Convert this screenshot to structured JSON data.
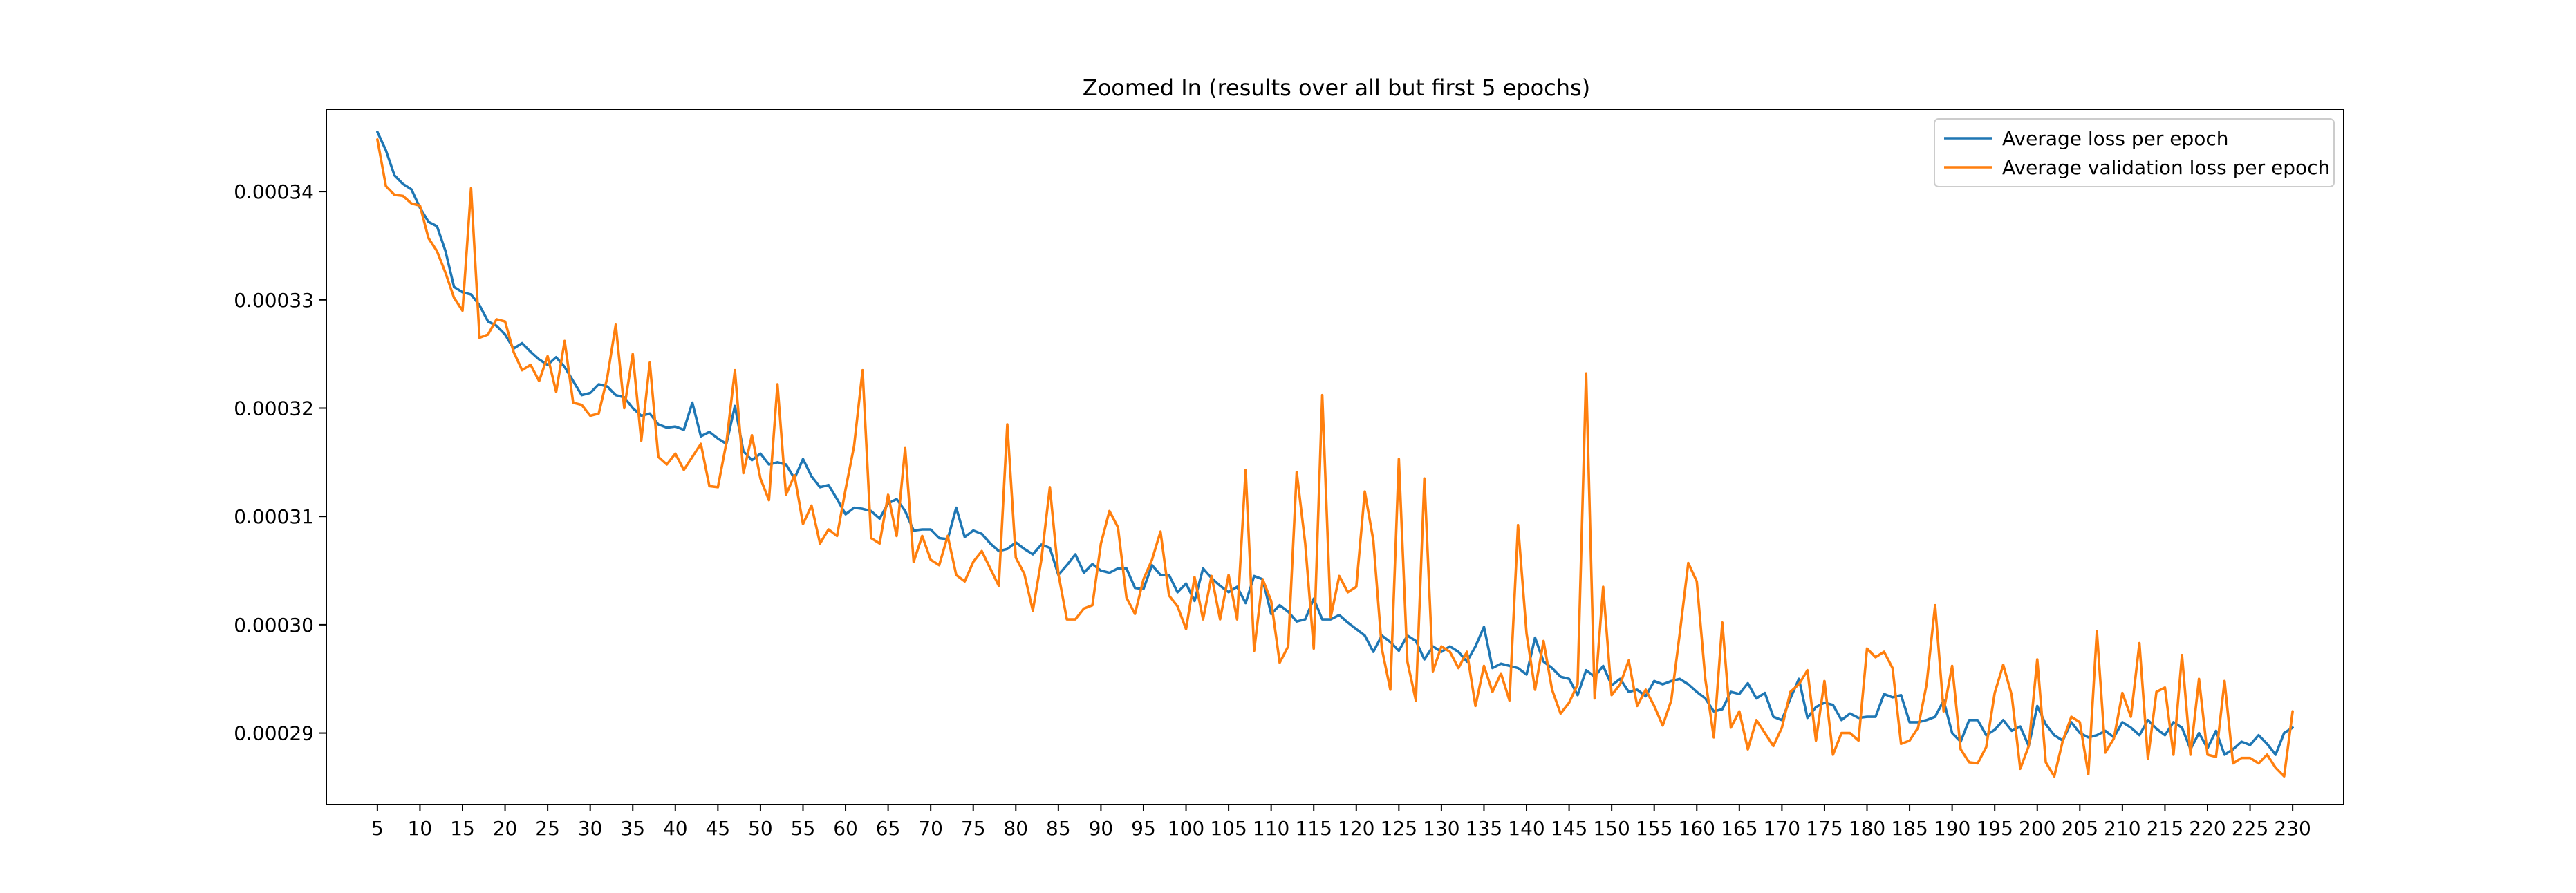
{
  "chart_data": {
    "type": "line",
    "title": "Zoomed In (results over all but first 5 epochs)",
    "xlabel": "",
    "ylabel": "",
    "xlim": [
      -1,
      236
    ],
    "ylim": [
      0.0002834,
      0.0003476
    ],
    "x_ticks": [
      5,
      10,
      15,
      20,
      25,
      30,
      35,
      40,
      45,
      50,
      55,
      60,
      65,
      70,
      75,
      80,
      85,
      90,
      95,
      100,
      105,
      110,
      115,
      120,
      125,
      130,
      135,
      140,
      145,
      150,
      155,
      160,
      165,
      170,
      175,
      180,
      185,
      190,
      195,
      200,
      205,
      210,
      215,
      220,
      225,
      230
    ],
    "y_ticks": [
      0.00029,
      0.0003,
      0.00031,
      0.00032,
      0.00033,
      0.00034
    ],
    "y_tick_labels": [
      "0.00029",
      "0.00030",
      "0.00031",
      "0.00032",
      "0.00033",
      "0.00034"
    ],
    "grid": false,
    "legend_position": "top-right",
    "x_start": 5,
    "x_end": 229,
    "series": [
      {
        "name": "Average loss per epoch",
        "color": "#1f77b4",
        "values": [
          0.0003455,
          0.0003438,
          0.0003415,
          0.0003407,
          0.0003402,
          0.0003385,
          0.0003372,
          0.0003368,
          0.0003345,
          0.0003312,
          0.0003307,
          0.0003305,
          0.0003295,
          0.000328,
          0.0003276,
          0.0003268,
          0.0003255,
          0.000326,
          0.0003252,
          0.0003245,
          0.000324,
          0.0003247,
          0.0003238,
          0.0003225,
          0.0003212,
          0.0003214,
          0.0003222,
          0.000322,
          0.0003212,
          0.000321,
          0.00032,
          0.0003193,
          0.0003195,
          0.0003185,
          0.0003182,
          0.0003183,
          0.000318,
          0.0003205,
          0.0003174,
          0.0003178,
          0.0003172,
          0.0003167,
          0.0003202,
          0.000316,
          0.0003152,
          0.0003158,
          0.0003148,
          0.000315,
          0.0003148,
          0.0003135,
          0.0003153,
          0.0003137,
          0.0003127,
          0.0003129,
          0.0003116,
          0.0003102,
          0.0003108,
          0.0003107,
          0.0003105,
          0.0003098,
          0.0003112,
          0.0003116,
          0.0003105,
          0.0003087,
          0.0003088,
          0.0003088,
          0.000308,
          0.0003079,
          0.0003108,
          0.0003081,
          0.0003087,
          0.0003084,
          0.0003075,
          0.0003068,
          0.000307,
          0.0003076,
          0.000307,
          0.0003065,
          0.0003074,
          0.0003071,
          0.0003046,
          0.0003055,
          0.0003065,
          0.0003048,
          0.0003056,
          0.000305,
          0.0003048,
          0.0003052,
          0.0003052,
          0.0003034,
          0.0003033,
          0.0003055,
          0.0003046,
          0.0003046,
          0.000303,
          0.0003038,
          0.0003022,
          0.0003052,
          0.0003043,
          0.0003036,
          0.000303,
          0.0003035,
          0.000302,
          0.0003045,
          0.0003042,
          0.000301,
          0.0003018,
          0.0003012,
          0.0003003,
          0.0003005,
          0.0003024,
          0.0003005,
          0.0003005,
          0.0003009,
          0.0003002,
          0.0002996,
          0.000299,
          0.0002975,
          0.000299,
          0.0002984,
          0.0002976,
          0.000299,
          0.0002985,
          0.0002968,
          0.000298,
          0.0002975,
          0.000298,
          0.0002975,
          0.0002966,
          0.000298,
          0.0002998,
          0.000296,
          0.0002964,
          0.0002962,
          0.000296,
          0.0002954,
          0.0002988,
          0.0002966,
          0.000296,
          0.0002952,
          0.000295,
          0.0002935,
          0.0002958,
          0.0002952,
          0.0002962,
          0.0002944,
          0.000295,
          0.0002938,
          0.000294,
          0.0002934,
          0.0002948,
          0.0002945,
          0.0002948,
          0.000295,
          0.0002945,
          0.0002938,
          0.0002932,
          0.000292,
          0.0002922,
          0.0002938,
          0.0002936,
          0.0002946,
          0.0002932,
          0.0002937,
          0.0002915,
          0.0002912,
          0.0002932,
          0.000295,
          0.0002914,
          0.0002924,
          0.0002928,
          0.0002926,
          0.0002912,
          0.0002918,
          0.0002914,
          0.0002915,
          0.0002915,
          0.0002936,
          0.0002933,
          0.0002935,
          0.000291,
          0.000291,
          0.0002912,
          0.0002915,
          0.000293,
          0.00029,
          0.0002892,
          0.0002912,
          0.0002912,
          0.0002898,
          0.0002903,
          0.0002912,
          0.0002902,
          0.0002906,
          0.0002888,
          0.0002925,
          0.0002908,
          0.0002898,
          0.0002893,
          0.000291,
          0.00029,
          0.0002896,
          0.0002898,
          0.0002902,
          0.0002896,
          0.000291,
          0.0002905,
          0.0002898,
          0.0002912,
          0.0002904,
          0.0002898,
          0.000291,
          0.0002905,
          0.0002885,
          0.00029,
          0.0002886,
          0.0002902,
          0.000288,
          0.0002885,
          0.0002892,
          0.0002889,
          0.0002898,
          0.000289,
          0.000288,
          0.00029,
          0.0002905
        ]
      },
      {
        "name": "Average validation loss per epoch",
        "color": "#ff7f0e",
        "values": [
          0.0003448,
          0.0003405,
          0.0003397,
          0.0003396,
          0.0003389,
          0.0003387,
          0.0003357,
          0.0003345,
          0.0003325,
          0.0003302,
          0.000329,
          0.0003403,
          0.0003265,
          0.0003268,
          0.0003282,
          0.000328,
          0.0003252,
          0.0003235,
          0.000324,
          0.0003225,
          0.0003248,
          0.0003215,
          0.0003262,
          0.0003205,
          0.0003203,
          0.0003193,
          0.0003195,
          0.0003228,
          0.0003277,
          0.00032,
          0.000325,
          0.000317,
          0.0003242,
          0.0003155,
          0.0003148,
          0.0003158,
          0.0003143,
          0.0003155,
          0.0003167,
          0.0003128,
          0.0003127,
          0.0003168,
          0.0003235,
          0.000314,
          0.0003175,
          0.0003135,
          0.0003115,
          0.0003222,
          0.000312,
          0.0003138,
          0.0003093,
          0.000311,
          0.0003075,
          0.0003088,
          0.0003082,
          0.0003125,
          0.0003165,
          0.0003235,
          0.000308,
          0.0003075,
          0.000312,
          0.0003082,
          0.0003163,
          0.0003058,
          0.0003082,
          0.000306,
          0.0003055,
          0.0003082,
          0.0003046,
          0.000304,
          0.0003058,
          0.0003068,
          0.0003052,
          0.0003036,
          0.0003185,
          0.0003062,
          0.0003047,
          0.0003013,
          0.000306,
          0.0003127,
          0.0003047,
          0.0003005,
          0.0003005,
          0.0003015,
          0.0003018,
          0.0003075,
          0.0003105,
          0.000309,
          0.0003025,
          0.000301,
          0.0003042,
          0.000306,
          0.0003086,
          0.0003027,
          0.0003017,
          0.0002996,
          0.0003044,
          0.0003005,
          0.0003045,
          0.0003005,
          0.0003046,
          0.0003005,
          0.0003143,
          0.0002976,
          0.0003042,
          0.0003022,
          0.0002965,
          0.000298,
          0.0003141,
          0.0003075,
          0.0002978,
          0.0003212,
          0.0003007,
          0.0003045,
          0.000303,
          0.0003035,
          0.0003123,
          0.0003078,
          0.0002978,
          0.000294,
          0.0003153,
          0.0002966,
          0.000293,
          0.0003135,
          0.0002957,
          0.000298,
          0.0002975,
          0.000296,
          0.0002975,
          0.0002925,
          0.0002962,
          0.0002938,
          0.0002955,
          0.000293,
          0.0003092,
          0.0002992,
          0.000294,
          0.0002985,
          0.000294,
          0.0002918,
          0.0002928,
          0.0002945,
          0.0003232,
          0.0002932,
          0.0003035,
          0.0002935,
          0.0002945,
          0.0002967,
          0.0002925,
          0.000294,
          0.0002925,
          0.0002907,
          0.000293,
          0.0002992,
          0.0003057,
          0.000304,
          0.000295,
          0.0002896,
          0.0003002,
          0.0002905,
          0.000292,
          0.0002885,
          0.0002912,
          0.00029,
          0.0002888,
          0.0002905,
          0.0002938,
          0.0002945,
          0.0002958,
          0.0002893,
          0.0002948,
          0.000288,
          0.00029,
          0.00029,
          0.0002893,
          0.0002978,
          0.000297,
          0.0002975,
          0.000296,
          0.000289,
          0.0002893,
          0.0002905,
          0.0002945,
          0.0003018,
          0.000292,
          0.0002962,
          0.0002885,
          0.0002873,
          0.0002872,
          0.0002887,
          0.0002937,
          0.0002963,
          0.0002935,
          0.0002867,
          0.0002888,
          0.0002968,
          0.0002873,
          0.000286,
          0.0002893,
          0.0002915,
          0.000291,
          0.0002862,
          0.0002994,
          0.0002882,
          0.0002895,
          0.0002937,
          0.0002915,
          0.0002983,
          0.0002876,
          0.0002938,
          0.0002942,
          0.000288,
          0.0002972,
          0.000288,
          0.000295,
          0.000288,
          0.0002878,
          0.0002948,
          0.0002872,
          0.0002877,
          0.0002877,
          0.0002872,
          0.000288,
          0.0002868,
          0.000286,
          0.000292
        ]
      }
    ]
  }
}
